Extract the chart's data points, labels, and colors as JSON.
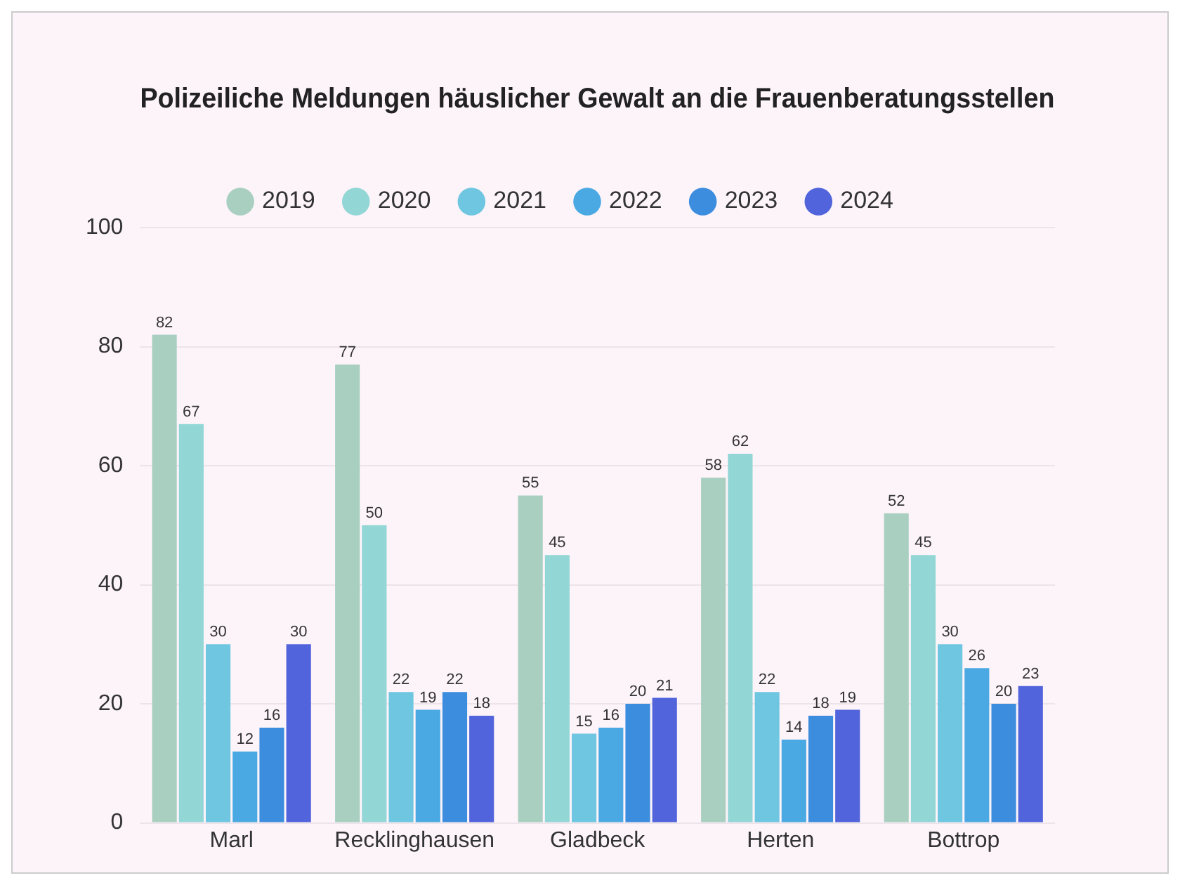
{
  "chart_data": {
    "type": "bar",
    "title": "Polizeiliche Meldungen häuslicher Gewalt an die Frauenberatungsstellen",
    "categories": [
      "Marl",
      "Recklinghausen",
      "Gladbeck",
      "Herten",
      "Bottrop"
    ],
    "series": [
      {
        "name": "2019",
        "color": "#a9cfc0",
        "values": [
          82,
          77,
          55,
          58,
          52
        ]
      },
      {
        "name": "2020",
        "color": "#92d6d6",
        "values": [
          67,
          50,
          45,
          62,
          45
        ]
      },
      {
        "name": "2021",
        "color": "#6ec6e0",
        "values": [
          30,
          22,
          15,
          22,
          30
        ]
      },
      {
        "name": "2022",
        "color": "#4aa9e2",
        "values": [
          12,
          19,
          16,
          14,
          26
        ]
      },
      {
        "name": "2023",
        "color": "#3d8ddf",
        "values": [
          16,
          22,
          20,
          18,
          20
        ]
      },
      {
        "name": "2024",
        "color": "#5164db",
        "values": [
          30,
          18,
          21,
          19,
          23
        ]
      }
    ],
    "ylim": [
      0,
      100
    ],
    "yticks": [
      0,
      20,
      40,
      60,
      80,
      100
    ],
    "grid": "y",
    "legend": "top",
    "data_labels": true
  }
}
